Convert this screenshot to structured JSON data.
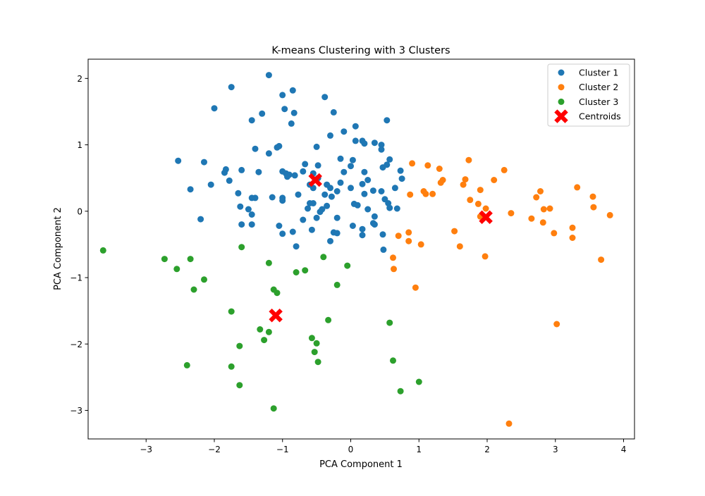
{
  "chart_data": {
    "type": "scatter",
    "title": "K-means Clustering with 3 Clusters",
    "xlabel": "PCA Component 1",
    "ylabel": "PCA Component 2",
    "xlim": [
      -3.85,
      4.16
    ],
    "ylim": [
      -3.43,
      2.29
    ],
    "xticks": [
      -3,
      -2,
      -1,
      0,
      1,
      2,
      3,
      4
    ],
    "yticks": [
      -3,
      -2,
      -1,
      0,
      1,
      2
    ],
    "grid": false,
    "legend_position": "top-right",
    "series": [
      {
        "name": "Cluster 1",
        "color": "#1f77b4",
        "marker": "circle",
        "points": [
          [
            -1.2,
            2.05
          ],
          [
            -1.75,
            1.87
          ],
          [
            -0.85,
            1.82
          ],
          [
            -1.0,
            1.75
          ],
          [
            -0.38,
            1.72
          ],
          [
            -2.0,
            1.55
          ],
          [
            -0.97,
            1.54
          ],
          [
            -1.3,
            1.47
          ],
          [
            -0.83,
            1.48
          ],
          [
            -0.25,
            1.49
          ],
          [
            -1.45,
            1.37
          ],
          [
            0.53,
            1.37
          ],
          [
            -0.87,
            1.32
          ],
          [
            0.07,
            1.28
          ],
          [
            -0.1,
            1.2
          ],
          [
            -0.3,
            1.14
          ],
          [
            0.07,
            1.06
          ],
          [
            0.17,
            1.06
          ],
          [
            0.2,
            1.02
          ],
          [
            0.35,
            1.03
          ],
          [
            0.45,
            1.0
          ],
          [
            -1.05,
            0.98
          ],
          [
            -1.08,
            0.96
          ],
          [
            -0.5,
            0.97
          ],
          [
            -1.4,
            0.94
          ],
          [
            -1.2,
            0.87
          ],
          [
            0.45,
            0.93
          ],
          [
            -0.15,
            0.79
          ],
          [
            0.03,
            0.77
          ],
          [
            0.57,
            0.78
          ],
          [
            -2.53,
            0.76
          ],
          [
            -2.15,
            0.74
          ],
          [
            -0.67,
            0.71
          ],
          [
            -0.48,
            0.69
          ],
          [
            0.0,
            0.68
          ],
          [
            0.47,
            0.66
          ],
          [
            0.53,
            0.7
          ],
          [
            -1.83,
            0.63
          ],
          [
            -1.6,
            0.62
          ],
          [
            -1.35,
            0.59
          ],
          [
            -1.0,
            0.6
          ],
          [
            -0.95,
            0.57
          ],
          [
            -0.9,
            0.55
          ],
          [
            -0.82,
            0.54
          ],
          [
            -0.7,
            0.6
          ],
          [
            -0.55,
            0.57
          ],
          [
            -0.1,
            0.59
          ],
          [
            0.2,
            0.59
          ],
          [
            0.73,
            0.61
          ],
          [
            -1.85,
            0.58
          ],
          [
            -0.93,
            0.52
          ],
          [
            -0.48,
            0.5
          ],
          [
            0.25,
            0.47
          ],
          [
            0.75,
            0.49
          ],
          [
            -1.78,
            0.46
          ],
          [
            -0.6,
            0.4
          ],
          [
            -0.55,
            0.35
          ],
          [
            -0.35,
            0.4
          ],
          [
            -0.15,
            0.43
          ],
          [
            0.17,
            0.41
          ],
          [
            -2.05,
            0.4
          ],
          [
            -2.35,
            0.33
          ],
          [
            -1.65,
            0.27
          ],
          [
            -0.3,
            0.35
          ],
          [
            -0.2,
            0.3
          ],
          [
            0.0,
            0.35
          ],
          [
            0.33,
            0.31
          ],
          [
            0.45,
            0.3
          ],
          [
            0.65,
            0.35
          ],
          [
            -1.4,
            0.2
          ],
          [
            -1.45,
            0.2
          ],
          [
            -1.15,
            0.21
          ],
          [
            -1.0,
            0.2
          ],
          [
            -0.77,
            0.25
          ],
          [
            -0.38,
            0.25
          ],
          [
            -0.28,
            0.22
          ],
          [
            0.2,
            0.26
          ],
          [
            -1.0,
            0.16
          ],
          [
            -0.6,
            0.12
          ],
          [
            -0.55,
            0.12
          ],
          [
            -0.35,
            0.08
          ],
          [
            0.05,
            0.11
          ],
          [
            0.1,
            0.09
          ],
          [
            0.5,
            0.18
          ],
          [
            0.55,
            0.12
          ],
          [
            -1.62,
            0.07
          ],
          [
            -1.5,
            0.03
          ],
          [
            -0.63,
            0.04
          ],
          [
            -0.42,
            0.03
          ],
          [
            -0.45,
            -0.01
          ],
          [
            0.25,
            0.03
          ],
          [
            0.57,
            0.05
          ],
          [
            0.68,
            0.04
          ],
          [
            -1.45,
            -0.05
          ],
          [
            -0.7,
            -0.13
          ],
          [
            -0.5,
            -0.1
          ],
          [
            -0.2,
            -0.1
          ],
          [
            0.35,
            -0.08
          ],
          [
            -2.2,
            -0.12
          ],
          [
            -1.6,
            -0.2
          ],
          [
            -1.45,
            -0.2
          ],
          [
            -1.05,
            -0.22
          ],
          [
            0.03,
            -0.22
          ],
          [
            0.33,
            -0.18
          ],
          [
            0.35,
            -0.2
          ],
          [
            -0.57,
            -0.28
          ],
          [
            -0.25,
            -0.32
          ],
          [
            -0.2,
            -0.33
          ],
          [
            0.17,
            -0.27
          ],
          [
            -1.0,
            -0.34
          ],
          [
            -0.85,
            -0.31
          ],
          [
            0.17,
            -0.36
          ],
          [
            0.47,
            -0.35
          ],
          [
            -0.3,
            -0.45
          ],
          [
            -0.8,
            -0.53
          ],
          [
            0.48,
            -0.58
          ]
        ]
      },
      {
        "name": "Cluster 2",
        "color": "#ff7f0e",
        "marker": "circle",
        "points": [
          [
            1.73,
            0.77
          ],
          [
            0.9,
            0.72
          ],
          [
            1.13,
            0.69
          ],
          [
            1.3,
            0.64
          ],
          [
            2.25,
            0.62
          ],
          [
            1.68,
            0.48
          ],
          [
            2.1,
            0.47
          ],
          [
            1.35,
            0.47
          ],
          [
            1.32,
            0.43
          ],
          [
            1.65,
            0.4
          ],
          [
            3.32,
            0.36
          ],
          [
            1.9,
            0.32
          ],
          [
            2.78,
            0.3
          ],
          [
            1.07,
            0.3
          ],
          [
            1.1,
            0.26
          ],
          [
            1.2,
            0.26
          ],
          [
            0.87,
            0.25
          ],
          [
            3.55,
            0.22
          ],
          [
            2.72,
            0.21
          ],
          [
            1.75,
            0.17
          ],
          [
            1.87,
            0.11
          ],
          [
            3.56,
            0.06
          ],
          [
            1.98,
            0.04
          ],
          [
            2.83,
            0.03
          ],
          [
            2.92,
            0.04
          ],
          [
            2.35,
            -0.03
          ],
          [
            3.8,
            -0.06
          ],
          [
            1.9,
            -0.08
          ],
          [
            2.65,
            -0.11
          ],
          [
            2.82,
            -0.17
          ],
          [
            3.25,
            -0.25
          ],
          [
            1.52,
            -0.3
          ],
          [
            0.85,
            -0.32
          ],
          [
            2.98,
            -0.33
          ],
          [
            0.7,
            -0.37
          ],
          [
            3.25,
            -0.4
          ],
          [
            0.85,
            -0.45
          ],
          [
            1.03,
            -0.5
          ],
          [
            1.6,
            -0.53
          ],
          [
            1.97,
            -0.68
          ],
          [
            0.62,
            -0.7
          ],
          [
            3.67,
            -0.73
          ],
          [
            0.63,
            -0.87
          ],
          [
            0.95,
            -1.15
          ],
          [
            3.02,
            -1.7
          ],
          [
            2.32,
            -3.2
          ]
        ]
      },
      {
        "name": "Cluster 3",
        "color": "#2ca02c",
        "marker": "circle",
        "points": [
          [
            -1.6,
            -0.54
          ],
          [
            -3.63,
            -0.59
          ],
          [
            -0.4,
            -0.69
          ],
          [
            -2.73,
            -0.72
          ],
          [
            -2.35,
            -0.72
          ],
          [
            -1.2,
            -0.78
          ],
          [
            -0.05,
            -0.82
          ],
          [
            -2.55,
            -0.87
          ],
          [
            -0.67,
            -0.89
          ],
          [
            -0.8,
            -0.92
          ],
          [
            -2.15,
            -1.03
          ],
          [
            -0.2,
            -1.11
          ],
          [
            -2.3,
            -1.18
          ],
          [
            -1.13,
            -1.18
          ],
          [
            -1.08,
            -1.23
          ],
          [
            -1.75,
            -1.51
          ],
          [
            -0.33,
            -1.64
          ],
          [
            0.57,
            -1.68
          ],
          [
            -1.33,
            -1.78
          ],
          [
            -1.2,
            -1.82
          ],
          [
            -0.57,
            -1.91
          ],
          [
            -1.27,
            -1.94
          ],
          [
            -0.5,
            -1.99
          ],
          [
            -1.63,
            -2.03
          ],
          [
            -0.53,
            -2.12
          ],
          [
            -0.48,
            -2.27
          ],
          [
            0.62,
            -2.25
          ],
          [
            -2.4,
            -2.32
          ],
          [
            -1.75,
            -2.34
          ],
          [
            -1.63,
            -2.62
          ],
          [
            1.0,
            -2.57
          ],
          [
            0.73,
            -2.71
          ],
          [
            -1.13,
            -2.97
          ]
        ]
      },
      {
        "name": "Centroids",
        "color": "#ff0000",
        "marker": "x",
        "points": [
          [
            -0.52,
            0.47
          ],
          [
            1.98,
            -0.09
          ],
          [
            -1.1,
            -1.57
          ]
        ]
      }
    ]
  }
}
